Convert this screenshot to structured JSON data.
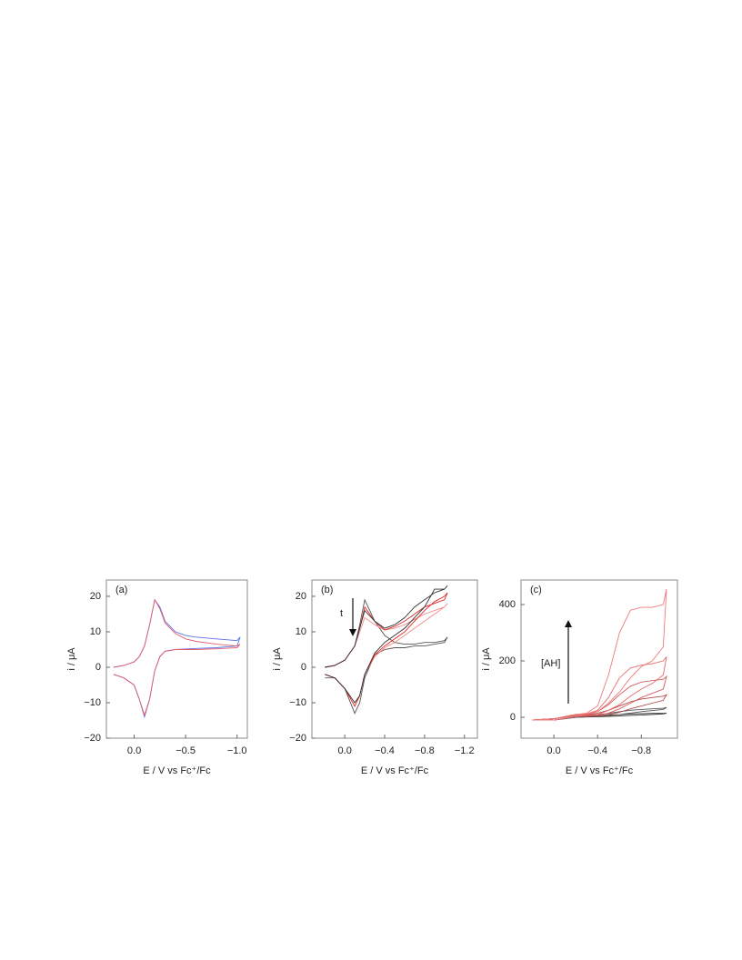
{
  "chart_data": [
    {
      "type": "line",
      "title": "(a)",
      "xlabel": "E / V vs Fc⁺/Fc",
      "ylabel": "i / μA",
      "xlim": [
        0.27,
        -1.1
      ],
      "xticks": [
        {
          "value": 0,
          "label": "0.0"
        },
        {
          "value": -0.5,
          "label": "−0.5"
        },
        {
          "value": -1.0,
          "label": "−1.0"
        }
      ],
      "ylim": [
        -20,
        24.6
      ],
      "yticks": [
        20,
        10,
        0,
        {
          "value": -10,
          "label": "−10"
        },
        {
          "value": -20,
          "label": "−20"
        }
      ],
      "x": [
        0.2,
        0.1,
        0,
        -0.05,
        -0.1,
        -0.15,
        -0.2,
        -0.25,
        -0.3,
        -0.4,
        -0.5,
        -0.6,
        -0.8,
        -1.0,
        -1.03,
        -1.0,
        -0.8,
        -0.6,
        -0.4,
        -0.3,
        -0.25,
        -0.2,
        -0.15,
        -0.1,
        -0.05,
        0,
        0.1,
        0.2
      ],
      "series": [
        {
          "color": "#5b6fe6",
          "values": [
            0,
            0.5,
            1.5,
            3,
            6,
            12,
            19,
            17,
            13,
            10,
            9,
            8.5,
            8,
            7.5,
            8.5,
            6,
            5.5,
            5.3,
            5,
            4.5,
            3,
            -1,
            -9,
            -14,
            -9,
            -5,
            -3,
            -2
          ]
        },
        {
          "color": "#e35d6a",
          "values": [
            0,
            0.5,
            1.5,
            3,
            6,
            12,
            19,
            16.5,
            12.5,
            9.5,
            8,
            7.3,
            6.5,
            6,
            6.5,
            5.5,
            5.2,
            5,
            5,
            4.5,
            3,
            -1,
            -9,
            -13.5,
            -9,
            -5,
            -3,
            -2
          ]
        }
      ]
    },
    {
      "type": "line",
      "title": "(b)",
      "xlabel": "E / V vs Fc⁺/Fc",
      "ylabel": "i / μA",
      "annotations": [
        "t"
      ],
      "xlim": [
        0.33,
        -1.33
      ],
      "xticks": [
        {
          "value": 0,
          "label": "0.0"
        },
        {
          "value": -0.4,
          "label": "−0.4"
        },
        {
          "value": -0.8,
          "label": "−0.8"
        },
        {
          "value": -1.2,
          "label": "−1.2"
        }
      ],
      "ylim": [
        -20,
        24.6
      ],
      "yticks": [
        20,
        10,
        0,
        {
          "value": -10,
          "label": "−10"
        },
        {
          "value": -20,
          "label": "−20"
        }
      ],
      "x": [
        0.2,
        0.1,
        0,
        -0.1,
        -0.15,
        -0.2,
        -0.3,
        -0.4,
        -0.5,
        -0.6,
        -0.7,
        -0.8,
        -0.9,
        -1.0,
        -1.03,
        -1.0,
        -0.9,
        -0.8,
        -0.7,
        -0.6,
        -0.5,
        -0.4,
        -0.3,
        -0.2,
        -0.15,
        -0.1,
        0,
        0.1,
        0.2
      ],
      "series": [
        {
          "color": "#555555",
          "values": [
            0,
            0.5,
            2,
            6,
            12,
            19,
            13,
            9,
            7,
            6.5,
            6.5,
            7,
            7,
            7.5,
            8.5,
            7,
            6.5,
            6,
            6,
            5.5,
            5.5,
            5,
            3.5,
            -3,
            -10,
            -13,
            -6,
            -3,
            -3
          ]
        },
        {
          "color": "#f08a8a",
          "values": [
            0,
            0.5,
            2,
            6,
            10,
            14,
            12,
            10.5,
            11,
            12,
            13.5,
            15,
            16,
            17,
            18,
            17,
            15,
            13,
            11,
            9,
            7,
            5.5,
            3,
            -2,
            -8,
            -10,
            -6,
            -3,
            -2
          ]
        },
        {
          "color": "#e02828",
          "values": [
            0,
            0.5,
            2,
            6,
            11,
            17,
            13,
            10.5,
            11.5,
            13,
            15,
            17,
            18,
            19,
            21,
            20,
            18.5,
            16,
            13,
            10,
            8,
            6,
            3.5,
            -2,
            -8,
            -11,
            -6,
            -3,
            -2
          ]
        },
        {
          "color": "#333333",
          "values": [
            0,
            0.5,
            2,
            6,
            11,
            16,
            13,
            11,
            12,
            14,
            17,
            19,
            21,
            22,
            23,
            22,
            22,
            17,
            14,
            11,
            9,
            7,
            4,
            -2,
            -8,
            -10,
            -6,
            -3,
            -2
          ]
        }
      ]
    },
    {
      "type": "line",
      "title": "(c)",
      "xlabel": "E / V vs Fc⁺/Fc",
      "ylabel": "i / μA",
      "annotations": [
        "[AH]"
      ],
      "xlim": [
        0.3,
        -1.13
      ],
      "xticks": [
        {
          "value": 0,
          "label": "0.0"
        },
        {
          "value": -0.4,
          "label": "−0.4"
        },
        {
          "value": -0.8,
          "label": "−0.8"
        }
      ],
      "ylim": [
        -74,
        487
      ],
      "yticks": [
        0,
        200,
        400
      ],
      "x": [
        0.2,
        0,
        -0.2,
        -0.3,
        -0.4,
        -0.5,
        -0.6,
        -0.7,
        -0.8,
        -0.9,
        -1.0,
        -1.03,
        -1.0,
        -0.9,
        -0.8,
        -0.7,
        -0.6,
        -0.5,
        -0.4,
        -0.2,
        0,
        0.2
      ],
      "series": [
        {
          "color": "#333333",
          "values": [
            -10,
            -5,
            8,
            6,
            6,
            8,
            10,
            12,
            13,
            14,
            14,
            15,
            12,
            10,
            8,
            7,
            5,
            3,
            2,
            0,
            -10,
            -10
          ]
        },
        {
          "color": "#555555",
          "values": [
            -10,
            -5,
            8,
            8,
            10,
            14,
            20,
            25,
            28,
            30,
            32,
            35,
            28,
            24,
            20,
            15,
            10,
            6,
            3,
            0,
            -10,
            -10
          ]
        },
        {
          "color": "#b04848",
          "values": [
            -10,
            -5,
            8,
            8,
            15,
            25,
            40,
            55,
            65,
            70,
            75,
            80,
            60,
            50,
            40,
            30,
            18,
            10,
            5,
            2,
            -10,
            -10
          ]
        },
        {
          "color": "#d05a5a",
          "values": [
            -10,
            -5,
            10,
            10,
            20,
            45,
            80,
            110,
            125,
            130,
            135,
            145,
            100,
            85,
            70,
            50,
            30,
            15,
            8,
            3,
            -10,
            -10
          ]
        },
        {
          "color": "#e86a6a",
          "values": [
            -10,
            -5,
            10,
            12,
            25,
            70,
            140,
            175,
            185,
            190,
            200,
            215,
            150,
            120,
            100,
            75,
            45,
            25,
            10,
            3,
            -10,
            -10
          ]
        },
        {
          "color": "#f07878",
          "values": [
            -10,
            -5,
            10,
            15,
            40,
            150,
            300,
            380,
            390,
            390,
            400,
            455,
            250,
            200,
            180,
            140,
            90,
            50,
            20,
            5,
            -10,
            -10
          ]
        }
      ]
    }
  ]
}
